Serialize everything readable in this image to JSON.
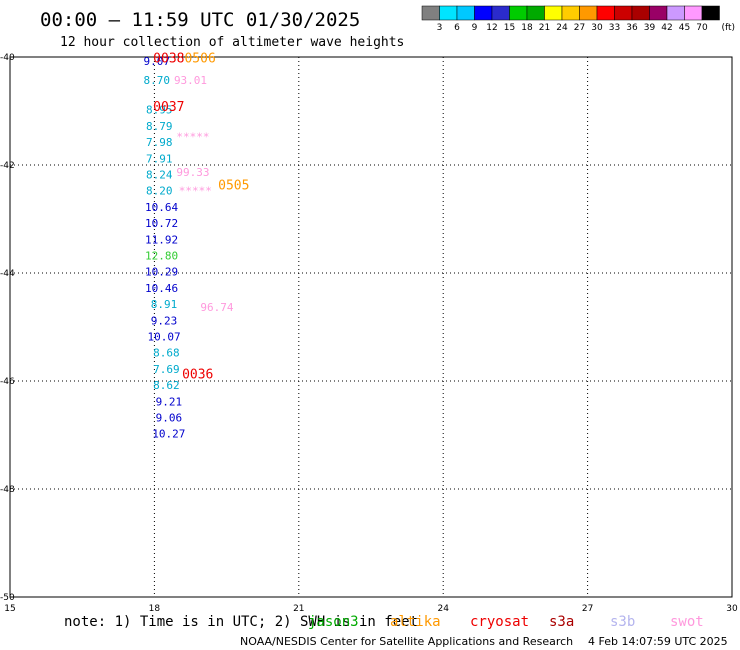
{
  "header": {
    "title": "00:00 – 11:59 UTC 01/30/2025",
    "subtitle": "12 hour collection of altimeter wave heights"
  },
  "colorbar": {
    "labels": [
      "3",
      "6",
      "9",
      "12",
      "15",
      "18",
      "21",
      "24",
      "27",
      "30",
      "33",
      "36",
      "39",
      "42",
      "45",
      "70"
    ],
    "unit": "(ft)",
    "colors": [
      "#808080",
      "#00e5ff",
      "#00c8ff",
      "#0000ff",
      "#2b2bcc",
      "#00cc00",
      "#00aa00",
      "#ffff00",
      "#ffcc00",
      "#ff9900",
      "#ff0000",
      "#cc0000",
      "#aa0000",
      "#990066",
      "#cc99ff",
      "#ff99ff",
      "#000000"
    ]
  },
  "note": {
    "text": "note: 1) Time is in UTC; 2) SWH is in feet",
    "satellites": [
      {
        "name": "jason3",
        "color": "#00aa00"
      },
      {
        "name": "altika",
        "color": "#ff9900"
      },
      {
        "name": "cryosat",
        "color": "#ee0000"
      },
      {
        "name": "s3a",
        "color": "#aa0000"
      },
      {
        "name": "s3b",
        "color": "#b4b4ee"
      },
      {
        "name": "swot",
        "color": "#ff99dd"
      }
    ]
  },
  "footer": {
    "agency": "NOAA/NESDIS Center for Satellite Applications and Research",
    "timestamp": "4 Feb 14:07:59 UTC 2025"
  },
  "chart_data": {
    "type": "scatter",
    "title": "00:00 – 11:59 UTC 01/30/2025",
    "subtitle": "12 hour collection of altimeter wave heights",
    "xlim": [
      15,
      30
    ],
    "ylim": [
      -50,
      -40
    ],
    "x_ticks": [
      "15",
      "18",
      "21",
      "24",
      "27",
      "30"
    ],
    "y_ticks": [
      "-40",
      "-42",
      "-44",
      "-46",
      "-48",
      "-50"
    ],
    "grid": true,
    "unit": "ft",
    "points": [
      {
        "x": 18.05,
        "y": -40.15,
        "v": "9.07",
        "c": "#0000cc"
      },
      {
        "x": 18.05,
        "y": -40.5,
        "v": "8.70",
        "c": "#00aacc"
      },
      {
        "x": 18.75,
        "y": -40.5,
        "v": "93.01",
        "c": "#ff99dd"
      },
      {
        "x": 18.1,
        "y": -41.05,
        "v": "8.95",
        "c": "#00aacc"
      },
      {
        "x": 18.1,
        "y": -41.35,
        "v": "8.79",
        "c": "#00aacc"
      },
      {
        "x": 18.1,
        "y": -41.65,
        "v": "7.98",
        "c": "#00aacc"
      },
      {
        "x": 18.8,
        "y": -41.55,
        "v": "*****",
        "c": "#ff99dd"
      },
      {
        "x": 18.1,
        "y": -41.95,
        "v": "7.91",
        "c": "#00aacc"
      },
      {
        "x": 18.1,
        "y": -42.25,
        "v": "8.24",
        "c": "#00aacc"
      },
      {
        "x": 18.8,
        "y": -42.2,
        "v": "99.33",
        "c": "#ff99dd"
      },
      {
        "x": 18.1,
        "y": -42.55,
        "v": "8.20",
        "c": "#00aacc"
      },
      {
        "x": 18.85,
        "y": -42.55,
        "v": "*****",
        "c": "#ff99dd"
      },
      {
        "x": 18.15,
        "y": -42.85,
        "v": "10.64",
        "c": "#0000cc"
      },
      {
        "x": 18.15,
        "y": -43.15,
        "v": "10.72",
        "c": "#0000cc"
      },
      {
        "x": 18.15,
        "y": -43.45,
        "v": "11.92",
        "c": "#0000cc"
      },
      {
        "x": 18.15,
        "y": -43.75,
        "v": "12.80",
        "c": "#33cc33"
      },
      {
        "x": 18.15,
        "y": -44.05,
        "v": "10.29",
        "c": "#0000cc"
      },
      {
        "x": 18.15,
        "y": -44.35,
        "v": "10.46",
        "c": "#0000cc"
      },
      {
        "x": 18.2,
        "y": -44.65,
        "v": "8.91",
        "c": "#00aacc"
      },
      {
        "x": 19.3,
        "y": -44.7,
        "v": "96.74",
        "c": "#ff99dd"
      },
      {
        "x": 18.2,
        "y": -44.95,
        "v": "9.23",
        "c": "#0000cc"
      },
      {
        "x": 18.2,
        "y": -45.25,
        "v": "10.07",
        "c": "#0000cc"
      },
      {
        "x": 18.25,
        "y": -45.55,
        "v": "8.68",
        "c": "#00aacc"
      },
      {
        "x": 18.25,
        "y": -45.85,
        "v": "7.69",
        "c": "#00aacc"
      },
      {
        "x": 18.25,
        "y": -46.15,
        "v": "8.62",
        "c": "#00aacc"
      },
      {
        "x": 18.3,
        "y": -46.45,
        "v": "9.21",
        "c": "#0000cc"
      },
      {
        "x": 18.3,
        "y": -46.75,
        "v": "9.06",
        "c": "#0000cc"
      },
      {
        "x": 18.3,
        "y": -47.05,
        "v": "10.27",
        "c": "#0000cc"
      }
    ],
    "pass_labels": [
      {
        "x": 18.3,
        "y": -40.1,
        "v": "0038",
        "c": "#ee0000"
      },
      {
        "x": 18.95,
        "y": -40.1,
        "v": "0506",
        "c": "#ff9900"
      },
      {
        "x": 18.3,
        "y": -41.0,
        "v": "0037",
        "c": "#ee0000"
      },
      {
        "x": 19.65,
        "y": -42.45,
        "v": "0505",
        "c": "#ff9900"
      },
      {
        "x": 18.9,
        "y": -45.95,
        "v": "0036",
        "c": "#ee0000"
      }
    ]
  }
}
